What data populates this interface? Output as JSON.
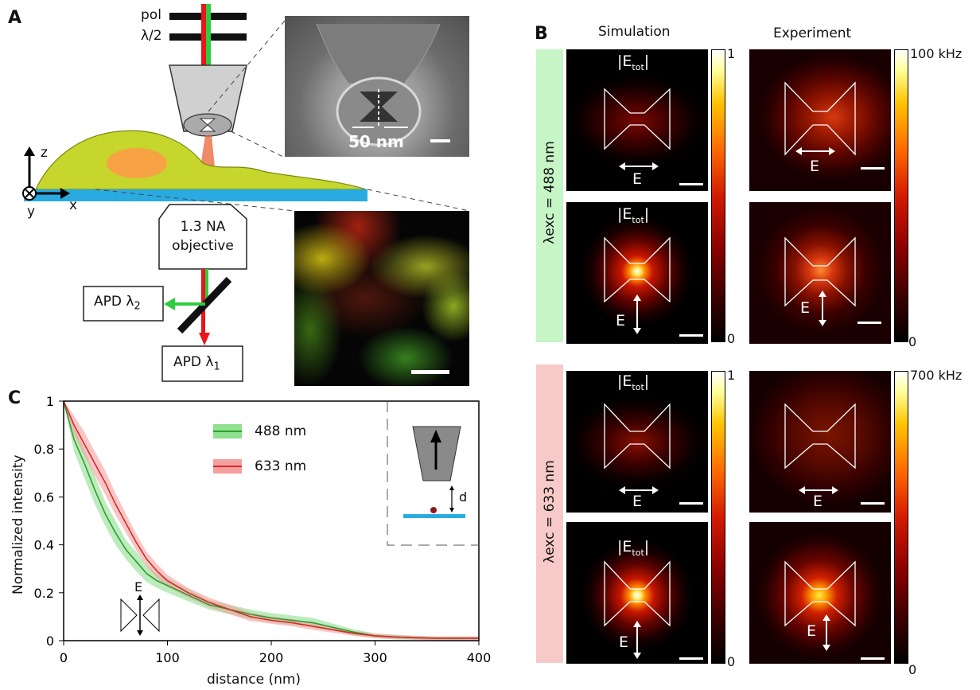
{
  "panel_labels": {
    "a": "A",
    "b": "B",
    "c": "C"
  },
  "panel_a": {
    "pol": "pol",
    "half_wave": "λ/2",
    "sem_scale": "50 nm",
    "axes": {
      "z": "z",
      "x": "x",
      "y": "y"
    },
    "objective": [
      "1.3 NA",
      "objective"
    ],
    "apd2": "APD λ",
    "apd2_sub": "2",
    "apd1": "APD λ",
    "apd1_sub": "1",
    "colors": {
      "substrate": "#29abe2",
      "cell": "#c7d62c",
      "nucleus": "#f7a343",
      "green": "#2ecc40",
      "red": "#e8151b"
    }
  },
  "panel_b": {
    "col_titles": [
      "Simulation",
      "Experiment"
    ],
    "row_group_1": {
      "label": "λexc = 488 nm",
      "color": "#c6f5c6"
    },
    "row_group_2": {
      "label": "λexc = 633 nm",
      "color": "#f8c9c9"
    },
    "field_label": "|E",
    "field_sub": "tot",
    "field_close": "|",
    "e_label": "E",
    "cbar_sim_max": "1",
    "cbar_sim_min": "0",
    "cbar_exp_max_488": "100 kHz",
    "cbar_exp_max_633": "700 kHz",
    "cbar_exp_min": "0"
  },
  "panel_c": {
    "inset_d": "d",
    "inset_e": "E"
  },
  "chart_data": {
    "type": "line",
    "title": "",
    "xlabel": "distance (nm)",
    "ylabel": "Normalized intensity",
    "xlim": [
      0,
      400
    ],
    "ylim": [
      0,
      1
    ],
    "xticks": [
      0,
      100,
      200,
      300,
      400
    ],
    "yticks": [
      0,
      0.2,
      0.4,
      0.6,
      0.8,
      1
    ],
    "grid": false,
    "legend": "top-center",
    "series": [
      {
        "name": "488 nm",
        "color": "#2e9e2e",
        "band_color": "#8fe08f",
        "x": [
          0,
          10,
          20,
          30,
          40,
          50,
          60,
          70,
          80,
          90,
          100,
          120,
          140,
          160,
          180,
          200,
          220,
          240,
          260,
          280,
          300,
          320,
          340,
          360,
          380,
          400
        ],
        "y": [
          1.0,
          0.84,
          0.74,
          0.63,
          0.53,
          0.45,
          0.38,
          0.33,
          0.28,
          0.25,
          0.23,
          0.19,
          0.15,
          0.13,
          0.11,
          0.095,
          0.085,
          0.075,
          0.055,
          0.035,
          0.02,
          0.015,
          0.012,
          0.01,
          0.01,
          0.01
        ],
        "band": [
          0.0,
          0.05,
          0.06,
          0.06,
          0.05,
          0.05,
          0.04,
          0.04,
          0.035,
          0.03,
          0.03,
          0.025,
          0.02,
          0.02,
          0.02,
          0.02,
          0.02,
          0.02,
          0.015,
          0.012,
          0.01,
          0.01,
          0.008,
          0.008,
          0.008,
          0.008
        ]
      },
      {
        "name": "633 nm",
        "color": "#d42a2a",
        "band_color": "#f5a0a0",
        "x": [
          0,
          10,
          20,
          30,
          40,
          50,
          60,
          70,
          80,
          90,
          100,
          120,
          140,
          160,
          180,
          200,
          220,
          240,
          260,
          280,
          300,
          320,
          340,
          360,
          380,
          400
        ],
        "y": [
          1.0,
          0.9,
          0.82,
          0.74,
          0.66,
          0.57,
          0.49,
          0.41,
          0.34,
          0.29,
          0.25,
          0.2,
          0.16,
          0.13,
          0.1,
          0.085,
          0.075,
          0.06,
          0.045,
          0.03,
          0.02,
          0.015,
          0.012,
          0.01,
          0.01,
          0.01
        ],
        "band": [
          0.0,
          0.04,
          0.05,
          0.05,
          0.05,
          0.045,
          0.04,
          0.035,
          0.03,
          0.03,
          0.025,
          0.02,
          0.02,
          0.02,
          0.018,
          0.015,
          0.015,
          0.015,
          0.012,
          0.01,
          0.01,
          0.008,
          0.008,
          0.008,
          0.008,
          0.008
        ]
      }
    ]
  }
}
